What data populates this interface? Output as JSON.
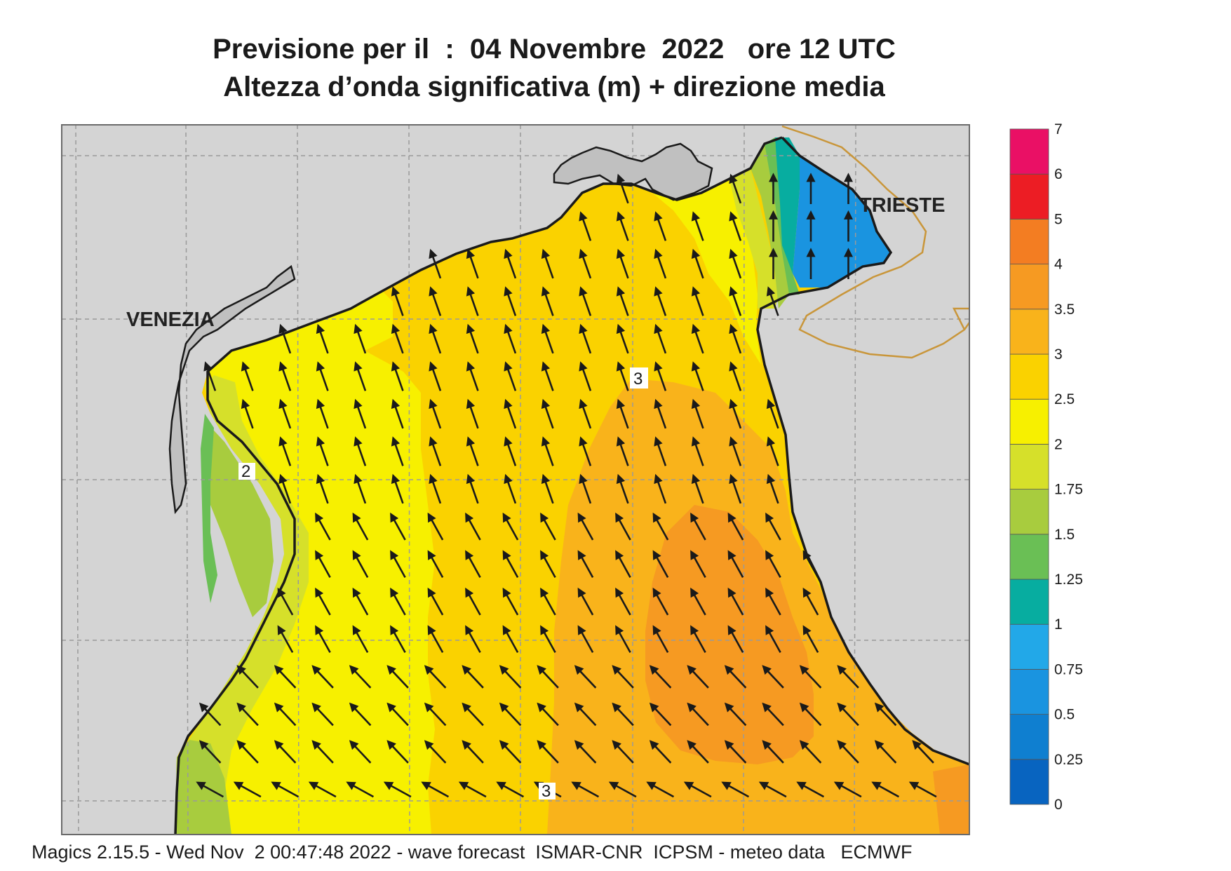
{
  "title_line1": "Previsione per il  :  04 Novembre  2022   ore 12 UTC",
  "title_line2": "Altezza d’onda significativa (m) + direzione media",
  "footer": "Magics 2.15.5 - Wed Nov  2 00:47:48 2022 - wave forecast  ISMAR-CNR  ICPSM - meteo data   ECMWF",
  "places": [
    {
      "name": "VENEZIA"
    },
    {
      "name": "TRIESTE"
    }
  ],
  "contour_labels": [
    "3",
    "2",
    "3"
  ],
  "legend": {
    "levels": [
      "0",
      "0.25",
      "0.5",
      "0.75",
      "1",
      "1.25",
      "1.5",
      "1.75",
      "2",
      "2.5",
      "3",
      "3.5",
      "4",
      "5",
      "6",
      "7"
    ],
    "colors": [
      "#0864c0",
      "#0f7fd0",
      "#1a94e0",
      "#22a8e8",
      "#07ada0",
      "#6abf55",
      "#a8cc3e",
      "#d6e02a",
      "#f7f000",
      "#fad200",
      "#f9b31b",
      "#f69a22",
      "#f37d22",
      "#ec1d24",
      "#ea1065"
    ]
  },
  "colors": {
    "land": "#d4d4d4",
    "coast": "#1a1a1a",
    "border": "#c9963a",
    "arrow": "#1a1a1a",
    "grid": "#9a9a9a"
  },
  "wave_direction": "north-west"
}
